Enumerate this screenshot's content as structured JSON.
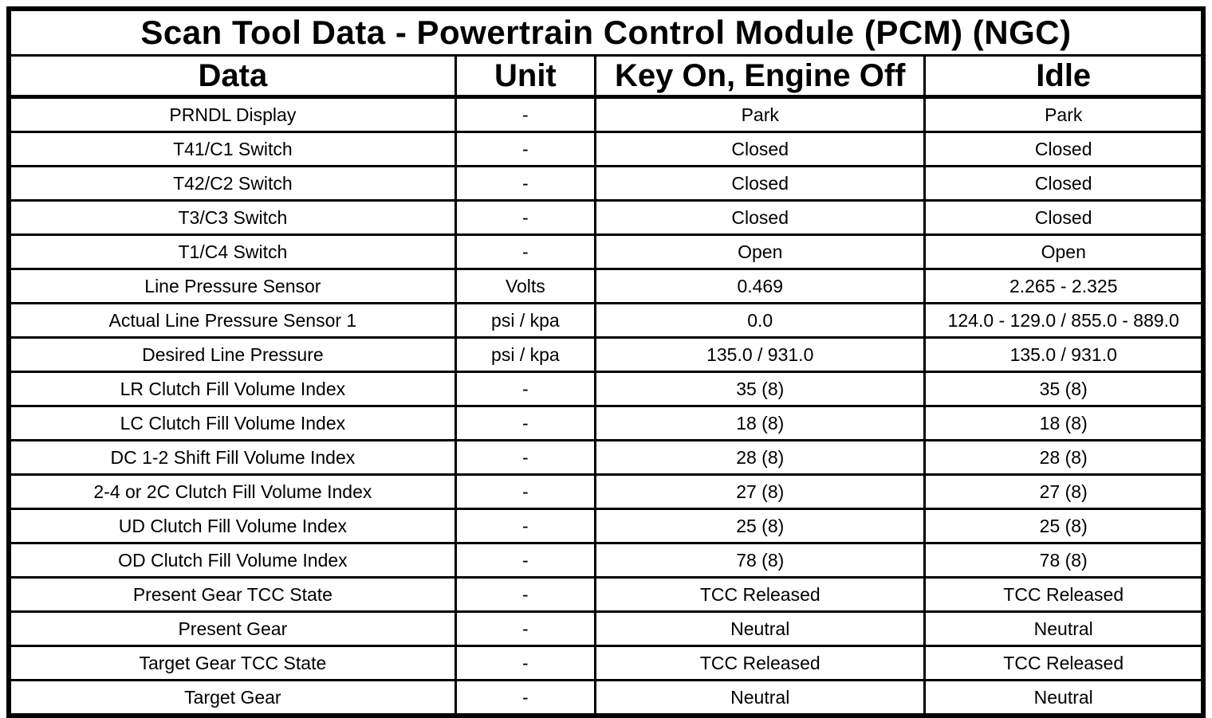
{
  "title": "Scan Tool Data - Powertrain Control Module (PCM) (NGC)",
  "table": {
    "columns": [
      "Data",
      "Unit",
      "Key On, Engine Off",
      "Idle"
    ],
    "rows": [
      {
        "data": "PRNDL Display",
        "unit": "-",
        "key_on_engine_off": "Park",
        "idle": "Park"
      },
      {
        "data": "T41/C1 Switch",
        "unit": "-",
        "key_on_engine_off": "Closed",
        "idle": "Closed"
      },
      {
        "data": "T42/C2 Switch",
        "unit": "-",
        "key_on_engine_off": "Closed",
        "idle": "Closed"
      },
      {
        "data": "T3/C3 Switch",
        "unit": "-",
        "key_on_engine_off": "Closed",
        "idle": "Closed"
      },
      {
        "data": "T1/C4 Switch",
        "unit": "-",
        "key_on_engine_off": "Open",
        "idle": "Open"
      },
      {
        "data": "Line Pressure Sensor",
        "unit": "Volts",
        "key_on_engine_off": "0.469",
        "idle": "2.265 - 2.325"
      },
      {
        "data": "Actual Line Pressure Sensor 1",
        "unit": "psi / kpa",
        "key_on_engine_off": "0.0",
        "idle": "124.0 - 129.0 / 855.0 - 889.0"
      },
      {
        "data": "Desired Line Pressure",
        "unit": "psi / kpa",
        "key_on_engine_off": "135.0 / 931.0",
        "idle": "135.0 / 931.0"
      },
      {
        "data": "LR Clutch Fill Volume Index",
        "unit": "-",
        "key_on_engine_off": "35 (8)",
        "idle": "35 (8)"
      },
      {
        "data": "LC Clutch Fill Volume Index",
        "unit": "-",
        "key_on_engine_off": "18 (8)",
        "idle": "18 (8)"
      },
      {
        "data": "DC 1-2 Shift Fill Volume Index",
        "unit": "-",
        "key_on_engine_off": "28 (8)",
        "idle": "28 (8)"
      },
      {
        "data": "2-4 or 2C Clutch Fill Volume Index",
        "unit": "-",
        "key_on_engine_off": "27 (8)",
        "idle": "27 (8)"
      },
      {
        "data": "UD Clutch Fill Volume Index",
        "unit": "-",
        "key_on_engine_off": "25 (8)",
        "idle": "25 (8)"
      },
      {
        "data": "OD Clutch Fill Volume Index",
        "unit": "-",
        "key_on_engine_off": "78 (8)",
        "idle": "78 (8)"
      },
      {
        "data": "Present Gear TCC State",
        "unit": "-",
        "key_on_engine_off": "TCC Released",
        "idle": "TCC Released"
      },
      {
        "data": "Present Gear",
        "unit": "-",
        "key_on_engine_off": "Neutral",
        "idle": "Neutral"
      },
      {
        "data": "Target Gear TCC State",
        "unit": "-",
        "key_on_engine_off": "TCC Released",
        "idle": "TCC Released"
      },
      {
        "data": "Target Gear",
        "unit": "-",
        "key_on_engine_off": "Neutral",
        "idle": "Neutral"
      }
    ]
  },
  "colors": {
    "border": "#000000",
    "background": "#ffffff",
    "text": "#000000"
  }
}
